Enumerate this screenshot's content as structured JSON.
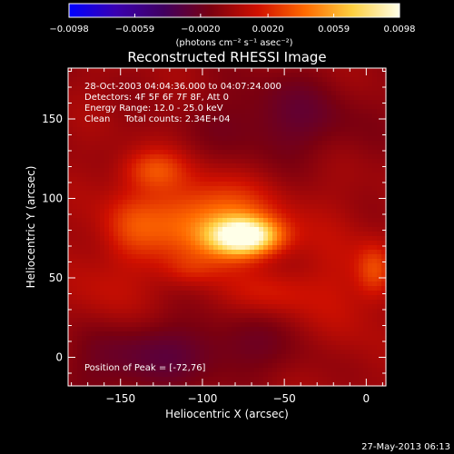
{
  "chart_data": {
    "type": "heatmap",
    "title": "Reconstructed RHESSI Image",
    "xlabel": "Heliocentric X (arcsec)",
    "ylabel": "Heliocentric Y (arcsec)",
    "xlim": [
      -182,
      12
    ],
    "ylim": [
      -18,
      182
    ],
    "x_ticks": [
      -150,
      -100,
      -50,
      0
    ],
    "y_ticks": [
      0,
      50,
      100,
      150
    ],
    "x_tick_labels": [
      "−150",
      "−100",
      "−50",
      "0"
    ],
    "y_tick_labels": [
      "0",
      "50",
      "100",
      "150"
    ],
    "colorbar": {
      "range": [
        -0.0098,
        0.0098
      ],
      "ticks": [
        -0.0098,
        -0.0059,
        -0.002,
        0.002,
        0.0059,
        0.0098
      ],
      "tick_labels": [
        "−0.0098",
        "−0.0059",
        "−0.0020",
        "0.0020",
        "0.0059",
        "0.0098"
      ],
      "unit_label": "(photons cm⁻² s⁻¹ asec⁻²)",
      "colors": [
        "#0000ff",
        "#3a00b0",
        "#400060",
        "#7a0010",
        "#d01000",
        "#ff6a00",
        "#ffd040",
        "#ffffe8"
      ]
    },
    "annotations": {
      "line1": "28-Oct-2003 04:04:36.000 to 04:07:24.000",
      "line2": "Detectors: 4F 5F 6F 7F 8F, Att 0",
      "line3": "Energy Range: 12.0 - 25.0 keV",
      "line4": "Clean     Total counts: 2.34E+04",
      "peak": "Position of Peak = [-72,76]"
    },
    "peak": {
      "x": -72,
      "y": 76,
      "value": 0.0098
    },
    "sources": [
      {
        "x": -74,
        "y": 76,
        "sx": 15,
        "sy": 8,
        "amp": 0.0095
      },
      {
        "x": -97,
        "y": 85,
        "sx": 30,
        "sy": 18,
        "amp": 0.005
      },
      {
        "x": -130,
        "y": 118,
        "sx": 14,
        "sy": 9,
        "amp": 0.003
      },
      {
        "x": -145,
        "y": 82,
        "sx": 12,
        "sy": 16,
        "amp": 0.002
      },
      {
        "x": -15,
        "y": 40,
        "sx": 14,
        "sy": 30,
        "amp": 0.0015
      },
      {
        "x": 5,
        "y": 55,
        "sx": 8,
        "sy": 12,
        "amp": 0.003
      },
      {
        "x": -160,
        "y": 40,
        "sx": 16,
        "sy": 18,
        "amp": 0.0012
      },
      {
        "x": -60,
        "y": 40,
        "sx": 18,
        "sy": 10,
        "amp": 0.0018
      },
      {
        "x": -108,
        "y": 55,
        "sx": 12,
        "sy": 8,
        "amp": 0.0016
      },
      {
        "x": -50,
        "y": 150,
        "sx": 35,
        "sy": 20,
        "amp": -0.002
      },
      {
        "x": -150,
        "y": -5,
        "sx": 25,
        "sy": 18,
        "amp": -0.0015
      },
      {
        "x": -95,
        "y": 5,
        "sx": 40,
        "sy": 15,
        "amp": -0.0018
      }
    ],
    "grid": false,
    "legend": "none",
    "footer": "27-May-2013 06:13"
  }
}
